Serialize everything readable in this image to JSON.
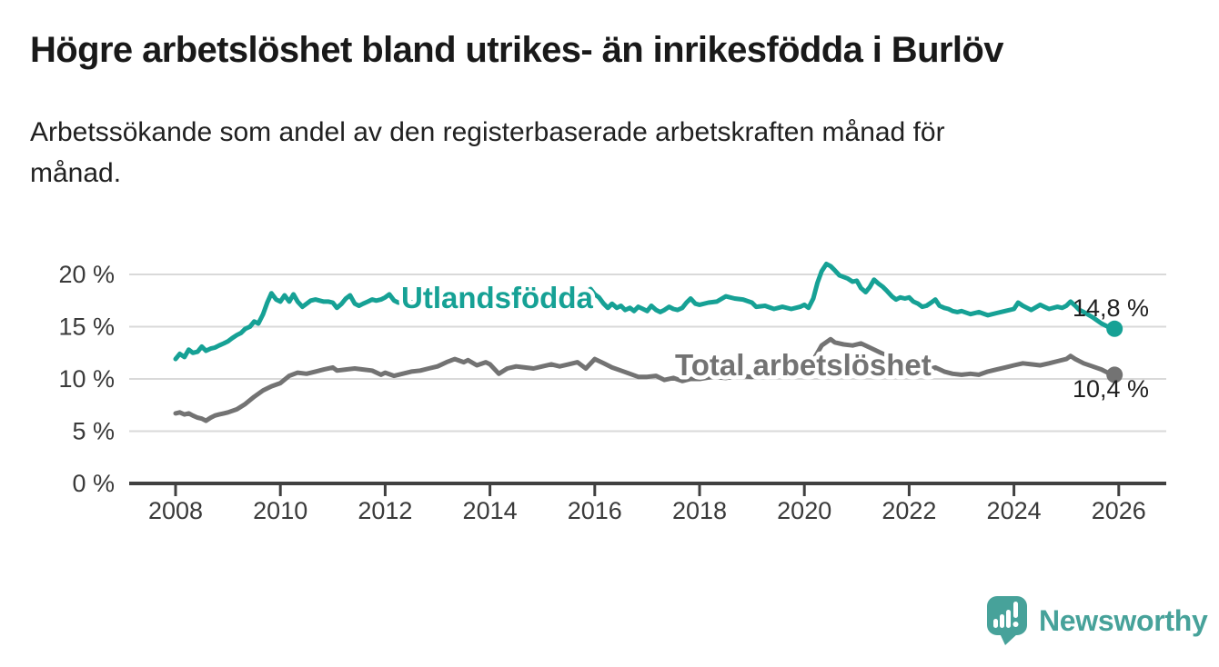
{
  "header": {
    "title": "Högre arbetslöshet bland utrikes- än inrikesfödda i Burlöv",
    "subtitle_lines": [
      "Arbetssökande som andel av den registerbaserade arbetskraften månad för",
      "månad."
    ]
  },
  "colors": {
    "accent_teal": "#16a195",
    "series_gray": "#737373",
    "logo_teal": "#47a29a",
    "gridline": "#d9d9d9",
    "axis": "#404040",
    "value_label_text": "#1f1f1f"
  },
  "footer": {
    "logo_text": "Newsworthy",
    "logo_icon": "bar-chart-speech-bubble"
  },
  "chart_data": {
    "type": "line",
    "title": "Högre arbetslöshet bland utrikes- än inrikesfödda i Burlöv",
    "subtitle": "Arbetssökande som andel av den registerbaserade arbetskraften månad för månad.",
    "xlabel": "",
    "ylabel": "",
    "y_unit": "%",
    "grid": true,
    "xlim": [
      2007.3,
      2026.9
    ],
    "ylim": [
      0,
      21.5
    ],
    "x_ticks": [
      2008,
      2010,
      2012,
      2014,
      2016,
      2018,
      2020,
      2022,
      2024,
      2026
    ],
    "x_tick_labels": [
      "2008",
      "2010",
      "2012",
      "2014",
      "2016",
      "2018",
      "2020",
      "2022",
      "2024",
      "2026"
    ],
    "y_ticks": [
      0,
      5,
      10,
      15,
      20
    ],
    "y_tick_labels": [
      "0 %",
      "5 %",
      "10 %",
      "15 %",
      "20 %"
    ],
    "legend_position": "inline-labels-on-lines",
    "series": [
      {
        "name": "Utlandsfödda",
        "color": "#16a195",
        "end_label": "14,8 %",
        "last_value": 14.8,
        "points": [
          [
            2008.0,
            11.9
          ],
          [
            2008.08,
            12.4
          ],
          [
            2008.17,
            12.1
          ],
          [
            2008.25,
            12.8
          ],
          [
            2008.33,
            12.5
          ],
          [
            2008.42,
            12.6
          ],
          [
            2008.5,
            13.1
          ],
          [
            2008.58,
            12.7
          ],
          [
            2008.67,
            12.9
          ],
          [
            2008.75,
            13.0
          ],
          [
            2008.83,
            13.2
          ],
          [
            2008.92,
            13.4
          ],
          [
            2009.0,
            13.6
          ],
          [
            2009.08,
            13.9
          ],
          [
            2009.17,
            14.2
          ],
          [
            2009.25,
            14.4
          ],
          [
            2009.33,
            14.8
          ],
          [
            2009.42,
            15.0
          ],
          [
            2009.5,
            15.5
          ],
          [
            2009.58,
            15.3
          ],
          [
            2009.67,
            16.2
          ],
          [
            2009.75,
            17.3
          ],
          [
            2009.83,
            18.2
          ],
          [
            2009.92,
            17.6
          ],
          [
            2010.0,
            17.4
          ],
          [
            2010.08,
            18.0
          ],
          [
            2010.17,
            17.4
          ],
          [
            2010.25,
            18.1
          ],
          [
            2010.33,
            17.4
          ],
          [
            2010.42,
            16.9
          ],
          [
            2010.5,
            17.2
          ],
          [
            2010.58,
            17.5
          ],
          [
            2010.67,
            17.6
          ],
          [
            2010.75,
            17.5
          ],
          [
            2010.83,
            17.4
          ],
          [
            2010.92,
            17.4
          ],
          [
            2011.0,
            17.3
          ],
          [
            2011.08,
            16.8
          ],
          [
            2011.17,
            17.2
          ],
          [
            2011.25,
            17.7
          ],
          [
            2011.33,
            18.0
          ],
          [
            2011.42,
            17.2
          ],
          [
            2011.5,
            17.0
          ],
          [
            2011.58,
            17.2
          ],
          [
            2011.67,
            17.4
          ],
          [
            2011.75,
            17.6
          ],
          [
            2011.83,
            17.5
          ],
          [
            2011.92,
            17.6
          ],
          [
            2012.0,
            17.8
          ],
          [
            2012.08,
            18.1
          ],
          [
            2012.17,
            17.5
          ],
          [
            2012.25,
            17.3
          ],
          [
            2012.33,
            17.4
          ],
          [
            2012.42,
            17.5
          ],
          [
            2012.5,
            17.3
          ],
          [
            2012.58,
            17.4
          ],
          [
            2012.67,
            17.2
          ],
          [
            2012.75,
            17.4
          ],
          [
            2012.83,
            17.3
          ],
          [
            2012.92,
            17.4
          ],
          [
            2013.0,
            17.3
          ],
          [
            2013.17,
            17.6
          ],
          [
            2013.33,
            18.3
          ],
          [
            2013.5,
            17.9
          ],
          [
            2013.67,
            18.0
          ],
          [
            2013.83,
            17.6
          ],
          [
            2014.0,
            17.7
          ],
          [
            2014.17,
            17.9
          ],
          [
            2014.33,
            17.4
          ],
          [
            2014.5,
            17.7
          ],
          [
            2014.67,
            17.5
          ],
          [
            2014.83,
            17.6
          ],
          [
            2015.0,
            17.6
          ],
          [
            2015.17,
            17.7
          ],
          [
            2015.33,
            17.5
          ],
          [
            2015.5,
            17.4
          ],
          [
            2015.67,
            17.6
          ],
          [
            2015.83,
            18.3
          ],
          [
            2015.92,
            18.6
          ],
          [
            2016.0,
            18.1
          ],
          [
            2016.08,
            17.8
          ],
          [
            2016.17,
            17.2
          ],
          [
            2016.25,
            16.8
          ],
          [
            2016.33,
            17.2
          ],
          [
            2016.42,
            16.8
          ],
          [
            2016.5,
            17.0
          ],
          [
            2016.58,
            16.6
          ],
          [
            2016.67,
            16.8
          ],
          [
            2016.75,
            16.5
          ],
          [
            2016.83,
            16.9
          ],
          [
            2016.92,
            16.7
          ],
          [
            2017.0,
            16.5
          ],
          [
            2017.08,
            17.0
          ],
          [
            2017.17,
            16.6
          ],
          [
            2017.25,
            16.4
          ],
          [
            2017.33,
            16.6
          ],
          [
            2017.42,
            16.9
          ],
          [
            2017.5,
            16.7
          ],
          [
            2017.58,
            16.6
          ],
          [
            2017.67,
            16.8
          ],
          [
            2017.75,
            17.3
          ],
          [
            2017.83,
            17.7
          ],
          [
            2017.92,
            17.2
          ],
          [
            2018.0,
            17.1
          ],
          [
            2018.17,
            17.3
          ],
          [
            2018.33,
            17.4
          ],
          [
            2018.5,
            17.9
          ],
          [
            2018.67,
            17.7
          ],
          [
            2018.83,
            17.6
          ],
          [
            2019.0,
            17.3
          ],
          [
            2019.08,
            16.9
          ],
          [
            2019.25,
            17.0
          ],
          [
            2019.42,
            16.7
          ],
          [
            2019.58,
            16.9
          ],
          [
            2019.75,
            16.7
          ],
          [
            2019.92,
            16.9
          ],
          [
            2020.0,
            17.1
          ],
          [
            2020.08,
            16.8
          ],
          [
            2020.17,
            17.7
          ],
          [
            2020.25,
            19.2
          ],
          [
            2020.33,
            20.3
          ],
          [
            2020.42,
            21.0
          ],
          [
            2020.5,
            20.8
          ],
          [
            2020.58,
            20.4
          ],
          [
            2020.67,
            19.9
          ],
          [
            2020.83,
            19.6
          ],
          [
            2020.92,
            19.3
          ],
          [
            2021.0,
            19.4
          ],
          [
            2021.08,
            18.7
          ],
          [
            2021.17,
            18.3
          ],
          [
            2021.25,
            18.8
          ],
          [
            2021.33,
            19.5
          ],
          [
            2021.42,
            19.1
          ],
          [
            2021.5,
            18.8
          ],
          [
            2021.58,
            18.4
          ],
          [
            2021.67,
            17.9
          ],
          [
            2021.75,
            17.6
          ],
          [
            2021.83,
            17.8
          ],
          [
            2021.92,
            17.7
          ],
          [
            2022.0,
            17.8
          ],
          [
            2022.08,
            17.4
          ],
          [
            2022.17,
            17.2
          ],
          [
            2022.25,
            16.9
          ],
          [
            2022.33,
            17.0
          ],
          [
            2022.42,
            17.3
          ],
          [
            2022.5,
            17.6
          ],
          [
            2022.58,
            17.0
          ],
          [
            2022.67,
            16.8
          ],
          [
            2022.75,
            16.7
          ],
          [
            2022.83,
            16.5
          ],
          [
            2022.92,
            16.4
          ],
          [
            2023.0,
            16.5
          ],
          [
            2023.17,
            16.2
          ],
          [
            2023.33,
            16.4
          ],
          [
            2023.5,
            16.1
          ],
          [
            2023.67,
            16.3
          ],
          [
            2023.83,
            16.5
          ],
          [
            2024.0,
            16.7
          ],
          [
            2024.08,
            17.3
          ],
          [
            2024.17,
            17.0
          ],
          [
            2024.25,
            16.8
          ],
          [
            2024.33,
            16.6
          ],
          [
            2024.5,
            17.1
          ],
          [
            2024.58,
            16.9
          ],
          [
            2024.67,
            16.7
          ],
          [
            2024.83,
            16.9
          ],
          [
            2024.92,
            16.8
          ],
          [
            2025.0,
            17.0
          ],
          [
            2025.08,
            17.4
          ],
          [
            2025.17,
            17.0
          ],
          [
            2025.25,
            16.6
          ],
          [
            2025.33,
            16.4
          ],
          [
            2025.5,
            15.9
          ],
          [
            2025.67,
            15.3
          ],
          [
            2025.83,
            14.9
          ],
          [
            2025.92,
            14.8
          ]
        ]
      },
      {
        "name": "Total arbetslöshet",
        "color": "#737373",
        "end_label": "10,4 %",
        "last_value": 10.4,
        "points": [
          [
            2008.0,
            6.7
          ],
          [
            2008.08,
            6.8
          ],
          [
            2008.17,
            6.6
          ],
          [
            2008.25,
            6.7
          ],
          [
            2008.33,
            6.5
          ],
          [
            2008.42,
            6.3
          ],
          [
            2008.5,
            6.2
          ],
          [
            2008.58,
            6.0
          ],
          [
            2008.67,
            6.3
          ],
          [
            2008.75,
            6.5
          ],
          [
            2008.83,
            6.6
          ],
          [
            2008.92,
            6.7
          ],
          [
            2009.0,
            6.8
          ],
          [
            2009.17,
            7.1
          ],
          [
            2009.33,
            7.6
          ],
          [
            2009.5,
            8.3
          ],
          [
            2009.67,
            8.9
          ],
          [
            2009.83,
            9.3
          ],
          [
            2010.0,
            9.6
          ],
          [
            2010.17,
            10.3
          ],
          [
            2010.33,
            10.6
          ],
          [
            2010.5,
            10.5
          ],
          [
            2010.67,
            10.7
          ],
          [
            2010.83,
            10.9
          ],
          [
            2011.0,
            11.1
          ],
          [
            2011.08,
            10.8
          ],
          [
            2011.25,
            10.9
          ],
          [
            2011.42,
            11.0
          ],
          [
            2011.58,
            10.9
          ],
          [
            2011.75,
            10.8
          ],
          [
            2011.92,
            10.4
          ],
          [
            2012.0,
            10.6
          ],
          [
            2012.17,
            10.3
          ],
          [
            2012.33,
            10.5
          ],
          [
            2012.5,
            10.7
          ],
          [
            2012.67,
            10.8
          ],
          [
            2012.83,
            11.0
          ],
          [
            2013.0,
            11.2
          ],
          [
            2013.17,
            11.6
          ],
          [
            2013.33,
            11.9
          ],
          [
            2013.5,
            11.6
          ],
          [
            2013.58,
            11.8
          ],
          [
            2013.75,
            11.3
          ],
          [
            2013.92,
            11.6
          ],
          [
            2014.0,
            11.4
          ],
          [
            2014.17,
            10.5
          ],
          [
            2014.33,
            11.0
          ],
          [
            2014.5,
            11.2
          ],
          [
            2014.67,
            11.1
          ],
          [
            2014.83,
            11.0
          ],
          [
            2015.0,
            11.2
          ],
          [
            2015.17,
            11.4
          ],
          [
            2015.33,
            11.2
          ],
          [
            2015.5,
            11.4
          ],
          [
            2015.67,
            11.6
          ],
          [
            2015.83,
            11.0
          ],
          [
            2016.0,
            11.9
          ],
          [
            2016.17,
            11.5
          ],
          [
            2016.33,
            11.1
          ],
          [
            2016.5,
            10.8
          ],
          [
            2016.67,
            10.5
          ],
          [
            2016.83,
            10.2
          ],
          [
            2017.0,
            10.2
          ],
          [
            2017.17,
            10.3
          ],
          [
            2017.33,
            9.9
          ],
          [
            2017.5,
            10.1
          ],
          [
            2017.67,
            9.8
          ],
          [
            2017.83,
            10.0
          ],
          [
            2018.0,
            10.0
          ],
          [
            2018.25,
            10.2
          ],
          [
            2018.5,
            10.1
          ],
          [
            2018.75,
            10.3
          ],
          [
            2019.0,
            10.2
          ],
          [
            2019.25,
            10.4
          ],
          [
            2019.5,
            10.5
          ],
          [
            2019.75,
            10.7
          ],
          [
            2020.0,
            11.0
          ],
          [
            2020.17,
            11.8
          ],
          [
            2020.33,
            13.2
          ],
          [
            2020.5,
            13.8
          ],
          [
            2020.58,
            13.5
          ],
          [
            2020.75,
            13.3
          ],
          [
            2020.92,
            13.2
          ],
          [
            2021.08,
            13.4
          ],
          [
            2021.25,
            13.0
          ],
          [
            2021.5,
            12.4
          ],
          [
            2021.75,
            11.8
          ],
          [
            2022.0,
            11.4
          ],
          [
            2022.17,
            11.0
          ],
          [
            2022.33,
            10.9
          ],
          [
            2022.5,
            11.1
          ],
          [
            2022.67,
            10.7
          ],
          [
            2022.83,
            10.5
          ],
          [
            2023.0,
            10.4
          ],
          [
            2023.17,
            10.5
          ],
          [
            2023.33,
            10.4
          ],
          [
            2023.5,
            10.7
          ],
          [
            2023.67,
            10.9
          ],
          [
            2023.83,
            11.1
          ],
          [
            2024.0,
            11.3
          ],
          [
            2024.17,
            11.5
          ],
          [
            2024.33,
            11.4
          ],
          [
            2024.5,
            11.3
          ],
          [
            2024.67,
            11.5
          ],
          [
            2024.83,
            11.7
          ],
          [
            2025.0,
            11.9
          ],
          [
            2025.08,
            12.2
          ],
          [
            2025.17,
            11.9
          ],
          [
            2025.33,
            11.5
          ],
          [
            2025.5,
            11.2
          ],
          [
            2025.67,
            10.9
          ],
          [
            2025.83,
            10.5
          ],
          [
            2025.92,
            10.4
          ]
        ]
      }
    ]
  }
}
